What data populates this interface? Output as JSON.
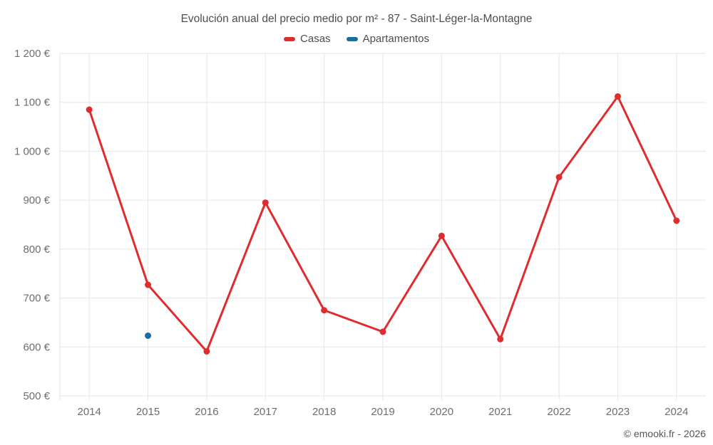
{
  "chart_data": {
    "type": "line",
    "title": "Evolución anual del precio medio por m² - 87 - Saint-Léger-la-Montagne",
    "categories": [
      "2014",
      "2015",
      "2016",
      "2017",
      "2018",
      "2019",
      "2020",
      "2021",
      "2022",
      "2023",
      "2024"
    ],
    "series": [
      {
        "name": "Casas",
        "color": "#e02b2f",
        "values": [
          1085,
          727,
          591,
          895,
          675,
          631,
          827,
          616,
          947,
          1112,
          858
        ]
      },
      {
        "name": "Apartamentos",
        "color": "#176fa0",
        "values": [
          null,
          623,
          null,
          null,
          null,
          null,
          null,
          null,
          null,
          null,
          null
        ]
      }
    ],
    "ylim": [
      500,
      1200
    ],
    "ytick_step": 100,
    "ytick_labels": [
      "500 €",
      "600 €",
      "700 €",
      "800 €",
      "900 €",
      "1 000 €",
      "1 100 €",
      "1 200 €"
    ],
    "xlabel": "",
    "ylabel": "",
    "grid": true,
    "legend_position": "top",
    "grid_color": "#e6e6e6",
    "axis_label_color": "#6e6e6e",
    "footer": "© emooki.fr - 2026"
  }
}
